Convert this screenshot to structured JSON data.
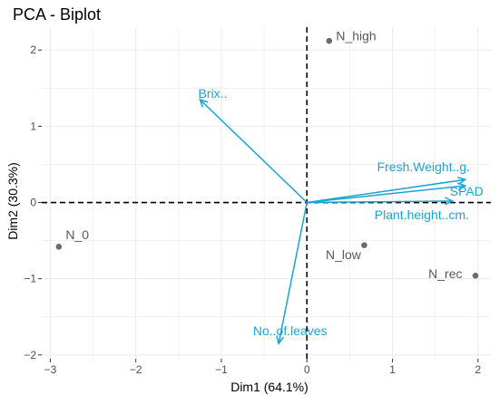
{
  "chart_data": {
    "type": "scatter",
    "title": "PCA - Biplot",
    "xlabel": "Dim1 (64.1%)",
    "ylabel": "Dim2 (30.3%)",
    "xlim": [
      -3.1,
      2.15
    ],
    "ylim": [
      -2.05,
      2.3
    ],
    "x_ticks": [
      -3,
      -2,
      -1,
      0,
      1,
      2
    ],
    "y_ticks": [
      -2,
      -1,
      0,
      1,
      2
    ],
    "x_tick_labels": [
      "−3",
      "−2",
      "−1",
      "0",
      "1",
      "2"
    ],
    "y_tick_labels": [
      "−2",
      "−1",
      "0",
      "1",
      "2"
    ],
    "grid": true,
    "reference_lines": [
      0,
      0
    ],
    "observations": [
      {
        "label": "N_high",
        "x": 0.26,
        "y": 2.12
      },
      {
        "label": "N_0",
        "x": -2.9,
        "y": -0.58
      },
      {
        "label": "N_low",
        "x": 0.67,
        "y": -0.56
      },
      {
        "label": "N_rec",
        "x": 1.97,
        "y": -0.96
      }
    ],
    "variables": [
      {
        "label": "Brix..",
        "x": -1.25,
        "y": 1.35
      },
      {
        "label": "Fresh.Weight..g.",
        "x": 1.85,
        "y": 0.3
      },
      {
        "label": "SPAD",
        "x": 1.85,
        "y": 0.22
      },
      {
        "label": "Plant.height..cm.",
        "x": 1.7,
        "y": 0.02
      },
      {
        "label": "No..of.leaves",
        "x": -0.33,
        "y": -1.85
      }
    ],
    "colors": {
      "observations": "#6b6b6b",
      "variables": "#1aa3d6",
      "grid": "#ebebeb"
    }
  }
}
